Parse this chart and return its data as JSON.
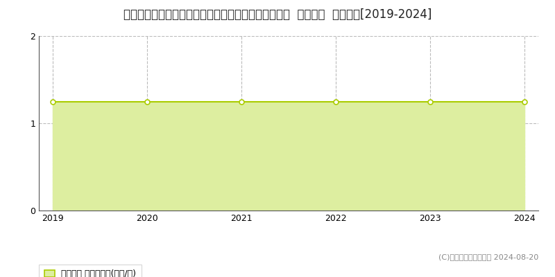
{
  "title": "東京都西多摩郡瑞穂町大字箔根ケ崎字武蔵野９６７番  地価公示  地価推移[2019-2024]",
  "years": [
    2019,
    2020,
    2021,
    2022,
    2023,
    2024
  ],
  "values": [
    1.25,
    1.25,
    1.25,
    1.25,
    1.25,
    1.25
  ],
  "ylim": [
    0,
    2
  ],
  "yticks": [
    0,
    1,
    2
  ],
  "line_color": "#aacc00",
  "fill_color": "#ddeea0",
  "marker_color": "#ffffff",
  "marker_edge_color": "#aacc00",
  "grid_color": "#bbbbbb",
  "background_color": "#ffffff",
  "legend_label": "地価公示 平均坤単価(万円/坤)",
  "copyright_text": "(C)土地価格ドットコム 2024-08-20",
  "title_fontsize": 12,
  "legend_fontsize": 9,
  "axis_fontsize": 9,
  "copyright_fontsize": 8
}
